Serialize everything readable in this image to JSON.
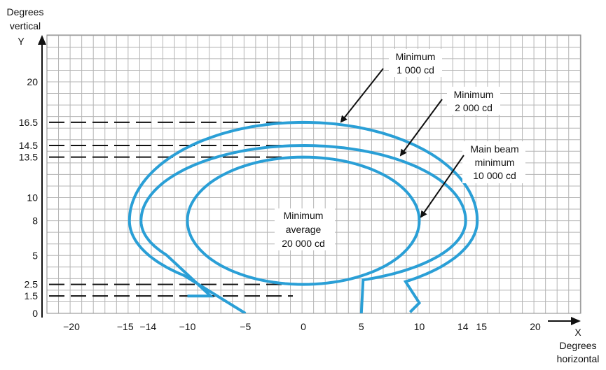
{
  "chart_data": {
    "type": "line",
    "axes": {
      "x": {
        "letter": "X",
        "label_lines": [
          "Degrees",
          "horizontal"
        ],
        "range": [
          -22,
          24
        ],
        "ticks": [
          {
            "value": -20,
            "label": "−20"
          },
          {
            "value": -15,
            "label": "−15"
          },
          {
            "value": -14,
            "label": "−14"
          },
          {
            "value": -10,
            "label": "−10"
          },
          {
            "value": -5,
            "label": "−5"
          },
          {
            "value": 0,
            "label": "0"
          },
          {
            "value": 5,
            "label": "5"
          },
          {
            "value": 10,
            "label": "10"
          },
          {
            "value": 14,
            "label": "14"
          },
          {
            "value": 15,
            "label": "15"
          },
          {
            "value": 20,
            "label": "20"
          }
        ]
      },
      "y": {
        "letter": "Y",
        "label_lines": [
          "Degrees",
          "vertical"
        ],
        "range": [
          0,
          24
        ],
        "ticks": [
          {
            "value": 20,
            "label": "20"
          },
          {
            "value": 16.5,
            "label": "16.5"
          },
          {
            "value": 14.5,
            "label": "14.5"
          },
          {
            "value": 13.5,
            "label": "13.5"
          },
          {
            "value": 10,
            "label": "10"
          },
          {
            "value": 8,
            "label": "8"
          },
          {
            "value": 5,
            "label": "5"
          },
          {
            "value": 2.5,
            "label": "2.5"
          },
          {
            "value": 1.5,
            "label": "1.5"
          },
          {
            "value": 0,
            "label": "0"
          }
        ]
      }
    },
    "grid": true,
    "series": [
      {
        "name": "Minimum 1 000 cd",
        "center": [
          0,
          8
        ],
        "x_half_width": 15,
        "y_top": 16.5,
        "y_bottom_ends": 0,
        "x_bottom_ends": [
          -5,
          5
        ],
        "open_bottom": true
      },
      {
        "name": "Minimum 2 000 cd",
        "center": [
          0,
          8
        ],
        "x_half_width": 14,
        "y_top": 14.5,
        "y_bottom": 2.5,
        "x_bottom_ends": [
          -10,
          5
        ],
        "open_bottom": true
      },
      {
        "name": "Main beam minimum 10 000 cd",
        "center": [
          0,
          8
        ],
        "x_half_width": 10,
        "y_top": 13.5,
        "y_bottom": 2.5
      }
    ],
    "reference_lines_y": [
      16.5,
      14.5,
      13.5,
      2.5,
      1.5
    ],
    "annotations": [
      {
        "lines": [
          "Minimum",
          "1 000 cd"
        ],
        "points_to": "Minimum 1 000 cd"
      },
      {
        "lines": [
          "Minimum",
          "2 000 cd"
        ],
        "points_to": "Minimum 2 000 cd"
      },
      {
        "lines": [
          "Main beam",
          "minimum",
          "10 000 cd"
        ],
        "points_to": "Main beam minimum 10 000 cd"
      },
      {
        "lines": [
          "Minimum",
          "average",
          "20 000 cd"
        ]
      }
    ],
    "line_color": "#2a9fd6"
  }
}
